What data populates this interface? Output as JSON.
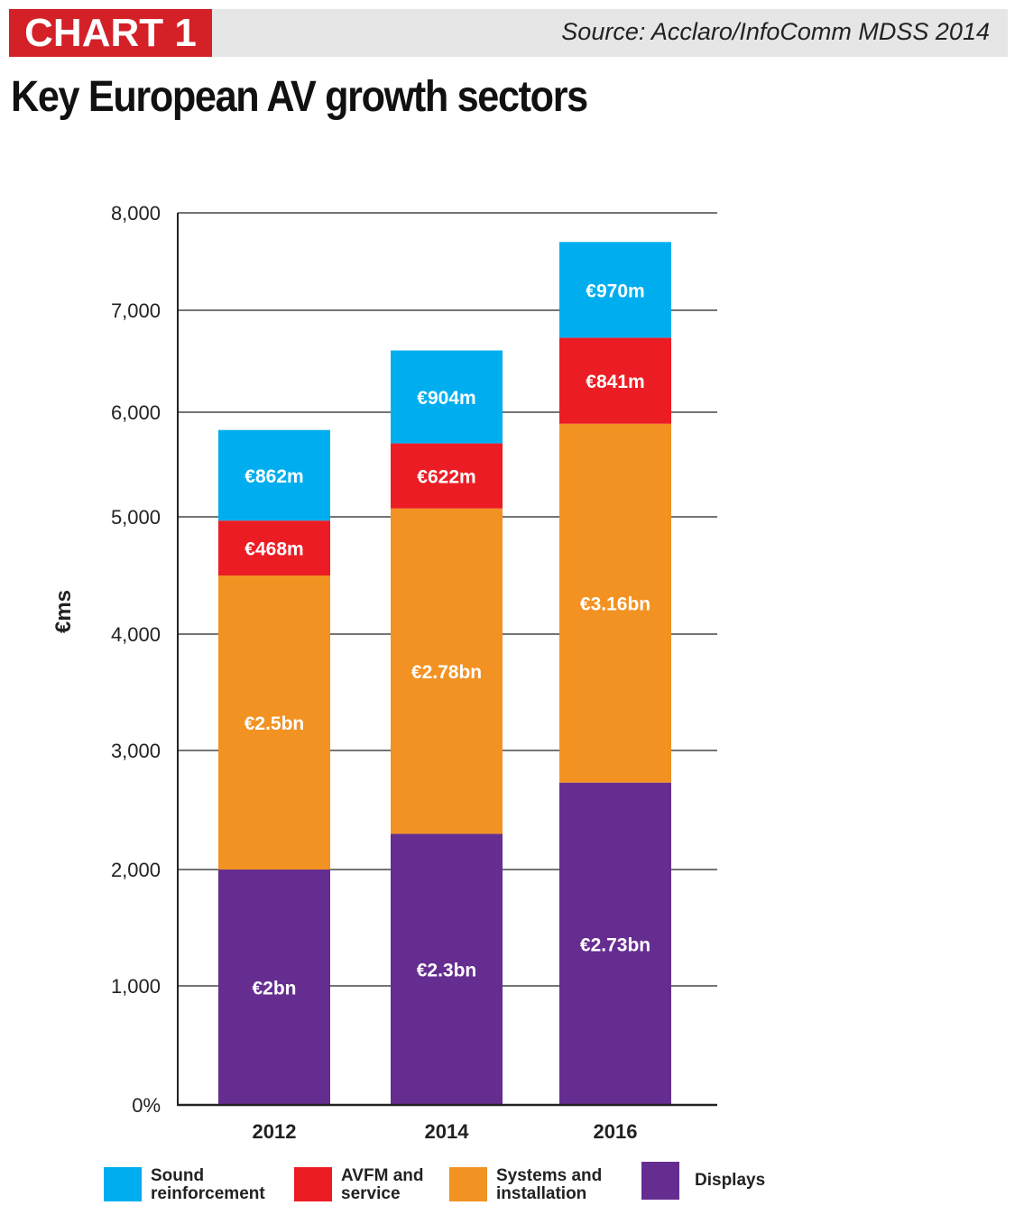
{
  "header": {
    "badge": "CHART 1",
    "source": "Source: Acclaro/InfoComm MDSS 2014",
    "title": "Key European AV growth sectors"
  },
  "chart_data": {
    "type": "bar",
    "stacked": true,
    "title": "Key European AV growth sectors",
    "xlabel": "",
    "ylabel": "€ms",
    "ylim": [
      0,
      8000
    ],
    "yticks": [
      0,
      1000,
      2000,
      3000,
      4000,
      5000,
      6000,
      7000,
      8000
    ],
    "ytick_labels": [
      "0%",
      "1,000",
      "2,000",
      "3,000",
      "4,000",
      "5,000",
      "6,000",
      "7,000",
      "8,000"
    ],
    "grid": true,
    "legend": "bottom",
    "categories": [
      "2012",
      "2014",
      "2016"
    ],
    "series": [
      {
        "name": "Displays",
        "color": "#662d91",
        "values": [
          2000,
          2300,
          2730
        ],
        "labels": [
          "€2bn",
          "€2.3bn",
          "€2.73bn"
        ]
      },
      {
        "name": "Systems and installation",
        "color": "#f29222",
        "values": [
          2500,
          2780,
          3160
        ],
        "labels": [
          "€2.5bn",
          "€2.78bn",
          "€3.16bn"
        ]
      },
      {
        "name": "AVFM and service",
        "color": "#ec1c24",
        "values": [
          468,
          622,
          841
        ],
        "labels": [
          "€468m",
          "€622m",
          "€841m"
        ]
      },
      {
        "name": "Sound reinforcement",
        "color": "#00aeef",
        "values": [
          862,
          904,
          970
        ],
        "labels": [
          "€862m",
          "€904m",
          "€970m"
        ]
      }
    ],
    "legend_items": [
      {
        "line1": "Sound",
        "line2": "reinforcement",
        "color": "#00aeef"
      },
      {
        "line1": "AVFM and",
        "line2": "service",
        "color": "#ec1c24"
      },
      {
        "line1": "Systems and",
        "line2": "installation",
        "color": "#f29222"
      },
      {
        "line1": "Displays",
        "line2": "",
        "color": "#662d91"
      }
    ]
  }
}
